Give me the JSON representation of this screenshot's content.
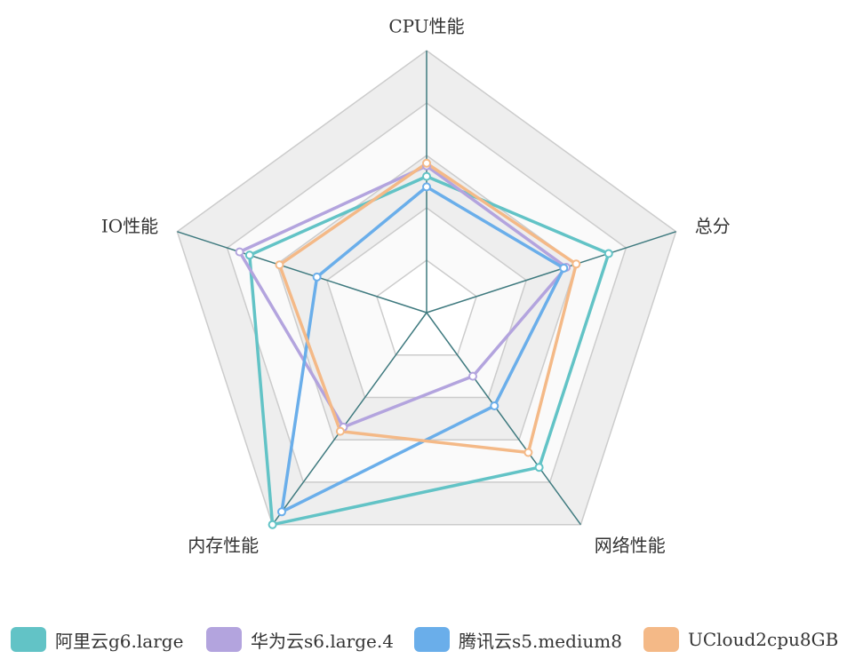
{
  "chart_data": {
    "type": "radar",
    "indicators": [
      "CPU性能",
      "总分",
      "网络性能",
      "内存性能",
      "IO性能"
    ],
    "max": 100,
    "split_number": 5,
    "series": [
      {
        "name": "阿里云g6.large",
        "color": "#62c3c6",
        "values": [
          52,
          73,
          73,
          100,
          71
        ]
      },
      {
        "name": "华为云s6.large.4",
        "color": "#b3a4de",
        "values": [
          56,
          56,
          30,
          54,
          75
        ]
      },
      {
        "name": "腾讯云s5.medium8",
        "color": "#6aaeea",
        "values": [
          48,
          55,
          44,
          94,
          44
        ]
      },
      {
        "name": "UCloud2cpu8GB",
        "color": "#f4b987",
        "values": [
          57,
          60,
          66,
          56,
          59
        ]
      }
    ],
    "colors": {
      "axis_line": "#3f7a7f",
      "split_line": "#cccccc",
      "split_area_light": "#fafafa",
      "split_area_dark": "#eeeeee"
    },
    "legend_position": "bottom"
  }
}
